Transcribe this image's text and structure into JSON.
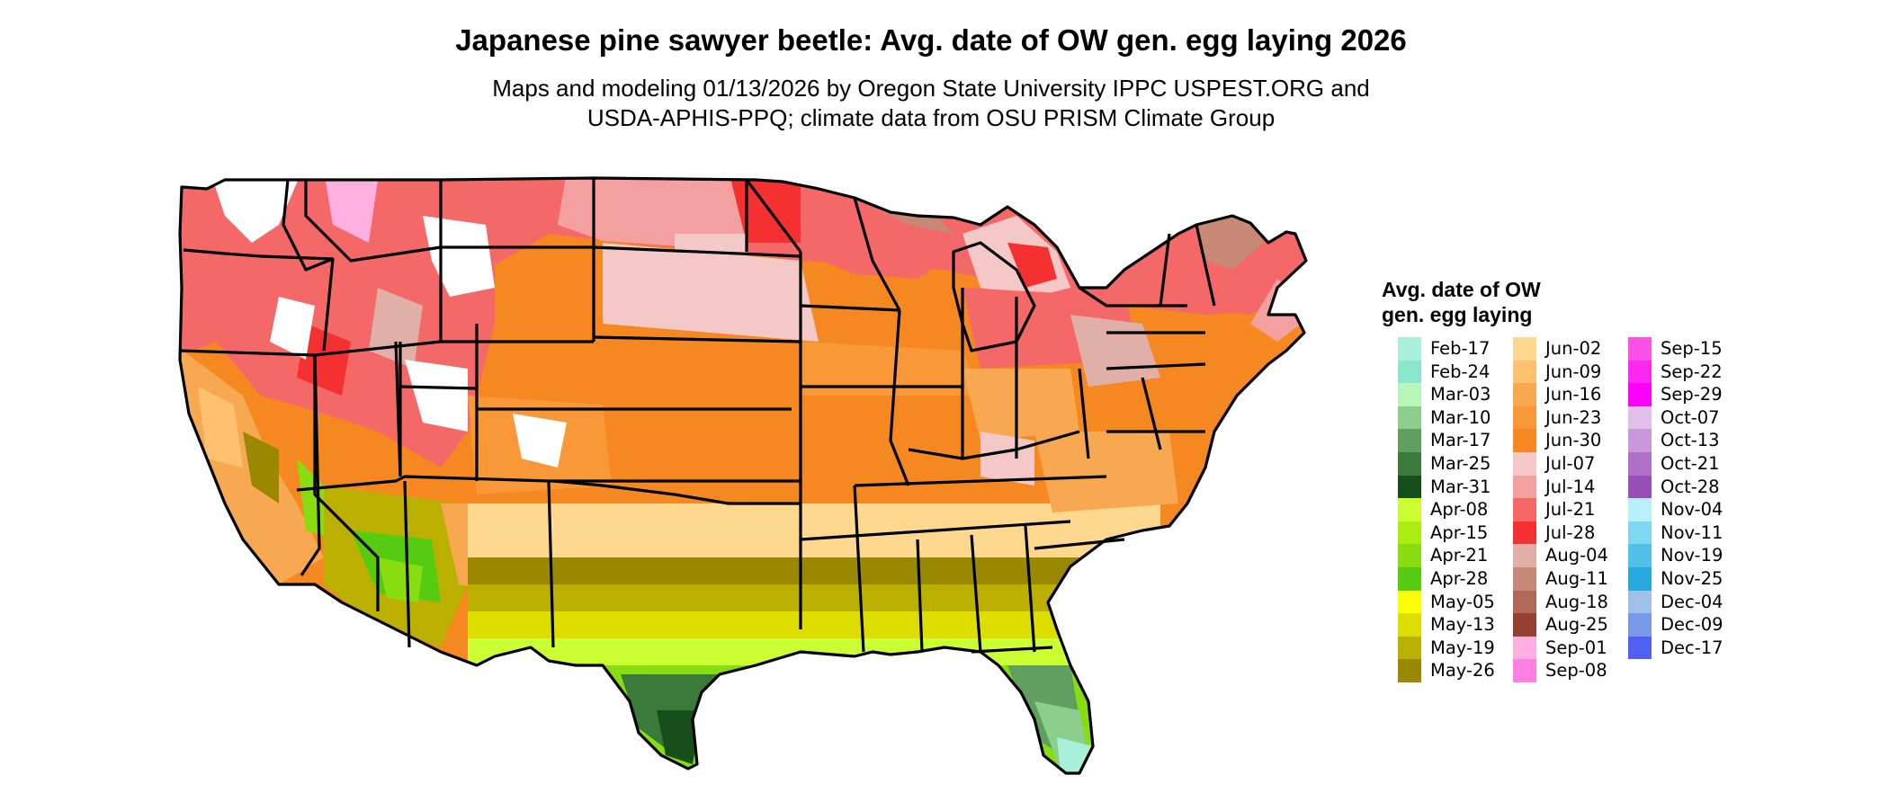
{
  "title": "Japanese pine sawyer beetle: Avg. date of OW gen. egg laying 2026",
  "subtitle": [
    "Maps and modeling 01/13/2026 by Oregon State University IPPC USPEST.ORG and",
    "USDA-APHIS-PPQ; climate data from OSU PRISM Climate Group"
  ],
  "legend": {
    "title_lines": [
      "Avg. date of OW",
      "gen. egg laying"
    ],
    "columns": [
      [
        {
          "label": "Feb-17",
          "color": "#a8f0dc"
        },
        {
          "label": "Feb-24",
          "color": "#8ce6cc"
        },
        {
          "label": "Mar-03",
          "color": "#b8f5b8"
        },
        {
          "label": "Mar-10",
          "color": "#8ccf8c"
        },
        {
          "label": "Mar-17",
          "color": "#5f9f5f"
        },
        {
          "label": "Mar-25",
          "color": "#3a7a3a"
        },
        {
          "label": "Mar-31",
          "color": "#15501a"
        },
        {
          "label": "Apr-08",
          "color": "#ccff33"
        },
        {
          "label": "Apr-15",
          "color": "#aaee11"
        },
        {
          "label": "Apr-21",
          "color": "#88dd11"
        },
        {
          "label": "Apr-28",
          "color": "#55cc11"
        },
        {
          "label": "May-05",
          "color": "#ffff00"
        },
        {
          "label": "May-13",
          "color": "#dddd00"
        },
        {
          "label": "May-19",
          "color": "#bbb000"
        },
        {
          "label": "May-26",
          "color": "#998800"
        }
      ],
      [
        {
          "label": "Jun-02",
          "color": "#ffd890"
        },
        {
          "label": "Jun-09",
          "color": "#ffc070"
        },
        {
          "label": "Jun-16",
          "color": "#f8a850"
        },
        {
          "label": "Jun-23",
          "color": "#f89838"
        },
        {
          "label": "Jun-30",
          "color": "#f58820"
        },
        {
          "label": "Jul-07",
          "color": "#f5c8c8"
        },
        {
          "label": "Jul-14",
          "color": "#f5a0a0"
        },
        {
          "label": "Jul-21",
          "color": "#f56868"
        },
        {
          "label": "Jul-28",
          "color": "#f53030"
        },
        {
          "label": "Aug-04",
          "color": "#e0b0a8"
        },
        {
          "label": "Aug-11",
          "color": "#c88878"
        },
        {
          "label": "Aug-18",
          "color": "#b06858"
        },
        {
          "label": "Aug-25",
          "color": "#984030"
        },
        {
          "label": "Sep-01",
          "color": "#ffb0e0"
        },
        {
          "label": "Sep-08",
          "color": "#ff80e0"
        }
      ],
      [
        {
          "label": "Sep-15",
          "color": "#ff50e8"
        },
        {
          "label": "Sep-22",
          "color": "#ff28f0"
        },
        {
          "label": "Sep-29",
          "color": "#ff00ff"
        },
        {
          "label": "Oct-07",
          "color": "#e0c0e8"
        },
        {
          "label": "Oct-13",
          "color": "#c898d8"
        },
        {
          "label": "Oct-21",
          "color": "#b070c8"
        },
        {
          "label": "Oct-28",
          "color": "#9850b8"
        },
        {
          "label": "Nov-04",
          "color": "#b8f0ff"
        },
        {
          "label": "Nov-11",
          "color": "#80d8f0"
        },
        {
          "label": "Nov-19",
          "color": "#50c0e8"
        },
        {
          "label": "Nov-25",
          "color": "#28a8e0"
        },
        {
          "label": "Dec-04",
          "color": "#a0c0e8"
        },
        {
          "label": "Dec-09",
          "color": "#7898e8"
        },
        {
          "label": "Dec-17",
          "color": "#5060f0"
        }
      ]
    ]
  }
}
